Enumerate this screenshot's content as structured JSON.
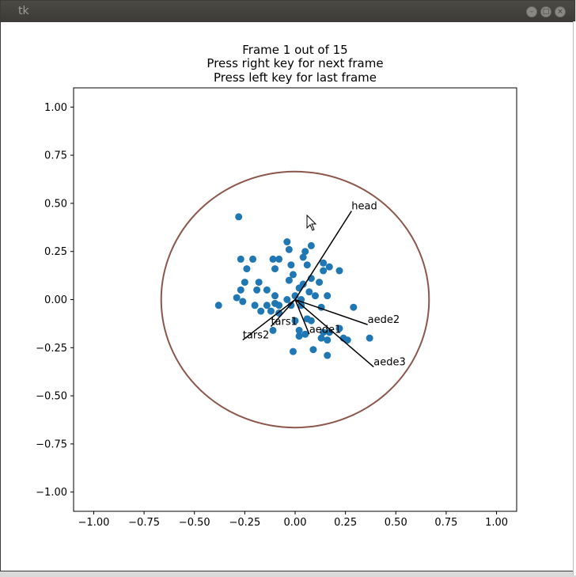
{
  "window": {
    "title": "tk",
    "buttons": [
      "minimize",
      "maximize",
      "close"
    ]
  },
  "colors": {
    "titlebar": "#3c3b37",
    "points": "#1f77b4",
    "circle": "#8c564b",
    "vectors": "#000000",
    "frame": "#000000"
  },
  "chart_data": {
    "type": "scatter",
    "title_lines": [
      "Frame 1 out of 15",
      "Press right key for next frame",
      "Press left key for last frame"
    ],
    "xlabel": "",
    "ylabel": "",
    "xlim": [
      -1.1,
      1.1
    ],
    "ylim": [
      -1.1,
      1.1
    ],
    "xticks": [
      -1.0,
      -0.75,
      -0.5,
      -0.25,
      0.0,
      0.25,
      0.5,
      0.75,
      1.0
    ],
    "yticks": [
      -1.0,
      -0.75,
      -0.5,
      -0.25,
      0.0,
      0.25,
      0.5,
      0.75,
      1.0
    ],
    "xtick_labels": [
      "−1.00",
      "−0.75",
      "−0.50",
      "−0.25",
      "0.00",
      "0.25",
      "0.50",
      "0.75",
      "1.00"
    ],
    "ytick_labels": [
      "−1.00",
      "−0.75",
      "−0.50",
      "−0.25",
      "0.00",
      "0.25",
      "0.50",
      "0.75",
      "1.00"
    ],
    "grid": false,
    "circle": {
      "center": [
        0,
        0
      ],
      "radius": 0.665
    },
    "vectors": [
      {
        "label": "head",
        "x": 0.28,
        "y": 0.46
      },
      {
        "label": "aede2",
        "x": 0.36,
        "y": -0.13
      },
      {
        "label": "aede3",
        "x": 0.39,
        "y": -0.35
      },
      {
        "label": "aede1",
        "x": 0.07,
        "y": -0.18
      },
      {
        "label": "tars1",
        "x": -0.12,
        "y": -0.14
      },
      {
        "label": "tars2",
        "x": -0.26,
        "y": -0.21
      }
    ],
    "points": [
      [
        -0.28,
        0.43
      ],
      [
        -0.04,
        0.3
      ],
      [
        -0.03,
        0.26
      ],
      [
        0.08,
        0.28
      ],
      [
        0.05,
        0.25
      ],
      [
        -0.27,
        0.21
      ],
      [
        -0.21,
        0.21
      ],
      [
        -0.11,
        0.21
      ],
      [
        -0.08,
        0.21
      ],
      [
        0.04,
        0.22
      ],
      [
        0.14,
        0.19
      ],
      [
        0.17,
        0.17
      ],
      [
        -0.24,
        0.16
      ],
      [
        -0.1,
        0.16
      ],
      [
        -0.02,
        0.18
      ],
      [
        0.06,
        0.18
      ],
      [
        0.14,
        0.15
      ],
      [
        -0.01,
        0.13
      ],
      [
        -0.25,
        0.09
      ],
      [
        -0.18,
        0.09
      ],
      [
        -0.03,
        0.1
      ],
      [
        0.08,
        0.11
      ],
      [
        0.12,
        0.09
      ],
      [
        0.22,
        0.15
      ],
      [
        -0.27,
        0.05
      ],
      [
        -0.19,
        0.05
      ],
      [
        -0.14,
        0.05
      ],
      [
        0.04,
        0.08
      ],
      [
        0.02,
        0.06
      ],
      [
        0.07,
        0.04
      ],
      [
        0.1,
        0.02
      ],
      [
        0.16,
        0.02
      ],
      [
        -0.29,
        0.01
      ],
      [
        -0.26,
        -0.01
      ],
      [
        -0.1,
        0.02
      ],
      [
        -0.04,
        0.0
      ],
      [
        0.0,
        0.02
      ],
      [
        0.03,
        0.0
      ],
      [
        -0.38,
        -0.03
      ],
      [
        -0.2,
        -0.03
      ],
      [
        -0.14,
        -0.03
      ],
      [
        -0.1,
        -0.02
      ],
      [
        -0.08,
        -0.03
      ],
      [
        -0.02,
        -0.03
      ],
      [
        0.03,
        -0.03
      ],
      [
        0.13,
        -0.04
      ],
      [
        0.29,
        -0.04
      ],
      [
        -0.17,
        -0.06
      ],
      [
        -0.12,
        -0.06
      ],
      [
        -0.08,
        -0.07
      ],
      [
        0.0,
        -0.11
      ],
      [
        0.06,
        -0.1
      ],
      [
        0.08,
        -0.11
      ],
      [
        -0.11,
        -0.16
      ],
      [
        0.02,
        -0.16
      ],
      [
        0.14,
        -0.17
      ],
      [
        0.17,
        -0.17
      ],
      [
        0.22,
        -0.15
      ],
      [
        0.05,
        -0.18
      ],
      [
        0.02,
        -0.19
      ],
      [
        0.13,
        -0.2
      ],
      [
        0.16,
        -0.21
      ],
      [
        0.24,
        -0.2
      ],
      [
        0.26,
        -0.21
      ],
      [
        0.37,
        -0.2
      ],
      [
        0.09,
        -0.26
      ],
      [
        -0.01,
        -0.27
      ],
      [
        0.16,
        -0.29
      ]
    ]
  }
}
